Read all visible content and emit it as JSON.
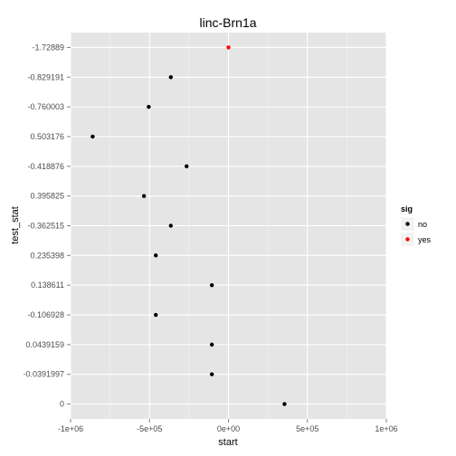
{
  "chart_data": {
    "type": "scatter",
    "title": "linc-Brn1a",
    "xlabel": "start",
    "ylabel": "test_stat",
    "xlim": [
      -1000000,
      1000000
    ],
    "x_ticks": [
      {
        "value": -1000000,
        "label": "-1e+06"
      },
      {
        "value": -500000,
        "label": "-5e+05"
      },
      {
        "value": 0,
        "label": "0e+00"
      },
      {
        "value": 500000,
        "label": "5e+05"
      },
      {
        "value": 1000000,
        "label": "1e+06"
      }
    ],
    "categories": [
      "0",
      "-0.0391997",
      "0.0439159",
      "-0.106928",
      "0.138611",
      "0.235398",
      "-0.362515",
      "0.395825",
      "-0.418876",
      "0.503176",
      "-0.760003",
      "-0.829191",
      "-1.72889"
    ],
    "points": [
      {
        "x": 355000,
        "y": "0",
        "sig": "no"
      },
      {
        "x": -105000,
        "y": "-0.0391997",
        "sig": "no"
      },
      {
        "x": -105000,
        "y": "0.0439159",
        "sig": "no"
      },
      {
        "x": -460000,
        "y": "-0.106928",
        "sig": "no"
      },
      {
        "x": -105000,
        "y": "0.138611",
        "sig": "no"
      },
      {
        "x": -460000,
        "y": "0.235398",
        "sig": "no"
      },
      {
        "x": -365000,
        "y": "-0.362515",
        "sig": "no"
      },
      {
        "x": -535000,
        "y": "0.395825",
        "sig": "no"
      },
      {
        "x": -265000,
        "y": "-0.418876",
        "sig": "no"
      },
      {
        "x": -860000,
        "y": "0.503176",
        "sig": "no"
      },
      {
        "x": -505000,
        "y": "-0.760003",
        "sig": "no"
      },
      {
        "x": -365000,
        "y": "-0.829191",
        "sig": "no"
      },
      {
        "x": 0,
        "y": "-1.72889",
        "sig": "yes"
      }
    ],
    "legend": {
      "title": "sig",
      "position": "right",
      "entries": [
        {
          "label": "no",
          "color": "#000000"
        },
        {
          "label": "yes",
          "color": "#ff0000"
        }
      ]
    },
    "grid": true
  }
}
